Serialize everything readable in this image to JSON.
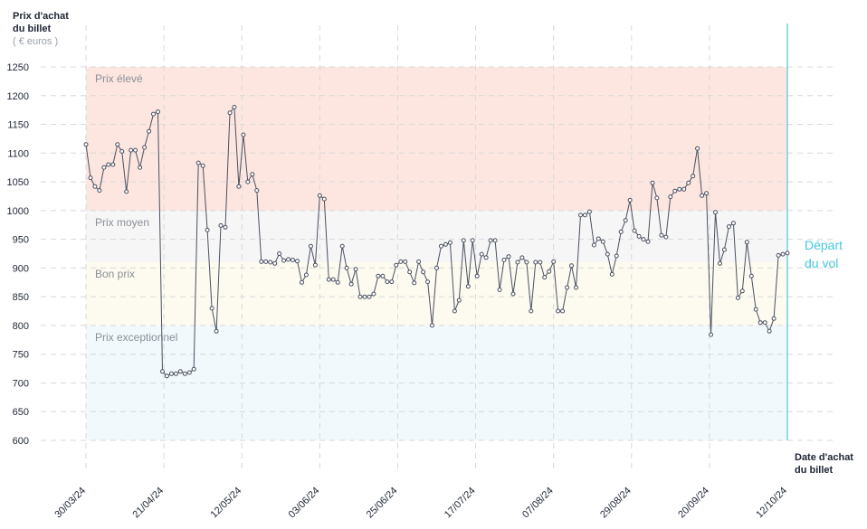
{
  "y_title_line1": "Prix d'achat",
  "y_title_line2": "du billet",
  "y_unit": "( € euros )",
  "x_title_line1": "Date d'achat",
  "x_title_line2": "du billet",
  "departure_line1": "Départ",
  "departure_line2": "du vol",
  "colors": {
    "line": "#4a5060",
    "departure": "#45c8dc",
    "band_high": "#fde6e0",
    "band_mid": "#f6f6f6",
    "band_good": "#fdfbf0",
    "band_exceptional": "#f1f9fd",
    "grid": "#d8d8d8"
  },
  "chart_data": {
    "type": "line",
    "ylim": [
      600,
      1250
    ],
    "yticks": [
      1250,
      1200,
      1150,
      1100,
      1050,
      1000,
      950,
      900,
      850,
      800,
      750,
      700,
      650,
      600
    ],
    "xticks": [
      "30/03/24",
      "21/04/24",
      "12/05/24",
      "03/06/24",
      "25/06/24",
      "17/07/24",
      "07/08/24",
      "29/08/24",
      "20/09/24",
      "12/10/24"
    ],
    "bands": [
      {
        "label": "Prix élevé",
        "from": 1000,
        "to": 1250
      },
      {
        "label": "Prix moyen",
        "from": 910,
        "to": 1000
      },
      {
        "label": "Bon prix",
        "from": 800,
        "to": 910
      },
      {
        "label": "Prix exceptionnel",
        "from": 600,
        "to": 800
      }
    ],
    "grid": true,
    "series": [
      {
        "values": [
          1115,
          1057,
          1042,
          1035,
          1075,
          1080,
          1080,
          1115,
          1103,
          1033,
          1105,
          1105,
          1075,
          1110,
          1138,
          1168,
          1172,
          720,
          712,
          716,
          716,
          720,
          716,
          718,
          724,
          1083,
          1078,
          966,
          830,
          790,
          974,
          971,
          1170,
          1180,
          1042,
          1132,
          1050,
          1063,
          1035,
          911,
          911,
          910,
          908,
          925,
          913,
          915,
          914,
          912,
          875,
          888,
          938,
          905,
          1026,
          1020,
          880,
          880,
          875,
          938,
          900,
          872,
          898,
          850,
          850,
          850,
          855,
          886,
          886,
          876,
          876,
          905,
          911,
          911,
          893,
          874,
          911,
          893,
          876,
          800,
          900,
          938,
          941,
          944,
          825,
          844,
          948,
          868,
          948,
          886,
          924,
          918,
          948,
          948,
          862,
          914,
          920,
          855,
          910,
          918,
          910,
          825,
          910,
          910,
          884,
          894,
          911,
          825,
          825,
          866,
          904,
          866,
          992,
          992,
          998,
          940,
          951,
          946,
          924,
          889,
          921,
          963,
          983,
          1018,
          965,
          955,
          950,
          946,
          1048,
          1022,
          957,
          954,
          1024,
          1034,
          1037,
          1037,
          1048,
          1060,
          1108,
          1026,
          1030,
          784,
          997,
          908,
          932,
          972,
          978,
          848,
          860,
          945,
          886,
          828,
          805,
          805,
          790,
          812,
          922,
          924,
          926
        ]
      }
    ]
  }
}
